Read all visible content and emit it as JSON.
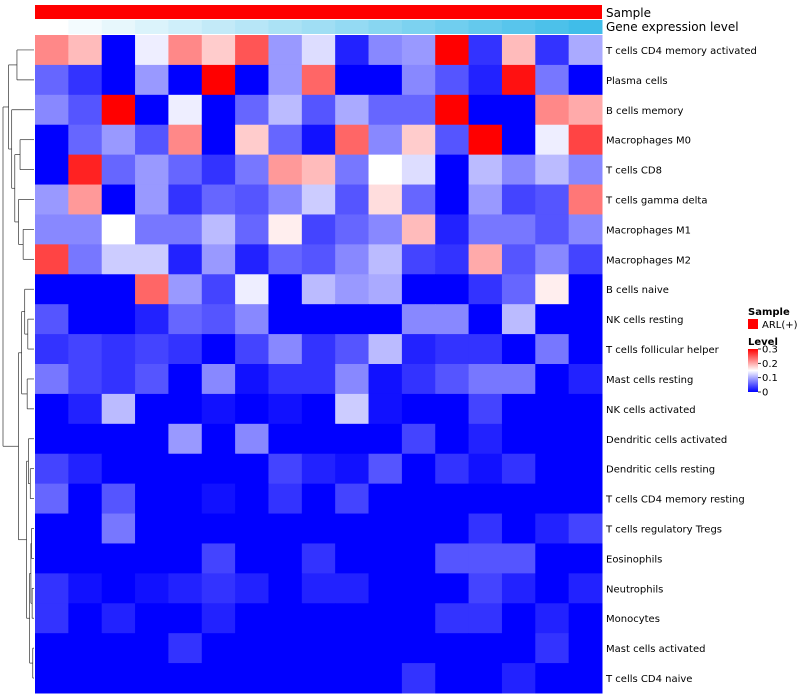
{
  "chart_data": {
    "type": "heatmap",
    "rows": [
      "T cells CD4 memory activated",
      "Plasma cells",
      "B cells memory",
      "Macrophages M0",
      "T cells CD8",
      "T cells gamma delta",
      "Macrophages M1",
      "Macrophages M2",
      "B cells naive",
      "NK cells resting",
      "T cells follicular helper",
      "Mast cells resting",
      "NK cells activated",
      "Dendritic cells activated",
      "Dendritic cells resting",
      "T cells CD4 memory resting",
      "T cells regulatory  Tregs",
      "Eosinophils",
      "Neutrophils",
      "Monocytes",
      "Mast cells activated",
      "T cells CD4 naive"
    ],
    "values": [
      [
        0.22,
        0.19,
        0.0,
        0.14,
        0.22,
        0.18,
        0.25,
        0.09,
        0.13,
        0.02,
        0.08,
        0.09,
        0.3,
        0.03,
        0.19,
        0.03,
        0.1
      ],
      [
        0.06,
        0.03,
        0.0,
        0.09,
        0.0,
        0.3,
        0.0,
        0.09,
        0.24,
        0.0,
        0.0,
        0.08,
        0.05,
        0.02,
        0.29,
        0.07,
        0.0
      ],
      [
        0.08,
        0.05,
        0.3,
        0.0,
        0.14,
        0.0,
        0.06,
        0.11,
        0.05,
        0.1,
        0.06,
        0.06,
        0.3,
        0.0,
        0.0,
        0.22,
        0.2
      ],
      [
        0.0,
        0.06,
        0.09,
        0.05,
        0.22,
        0.0,
        0.18,
        0.06,
        0.01,
        0.24,
        0.08,
        0.18,
        0.05,
        0.3,
        0.0,
        0.14,
        0.26
      ],
      [
        0.0,
        0.28,
        0.06,
        0.09,
        0.06,
        0.03,
        0.07,
        0.21,
        0.19,
        0.07,
        0.15,
        0.13,
        0.0,
        0.11,
        0.08,
        0.11,
        0.08
      ],
      [
        0.09,
        0.21,
        0.0,
        0.09,
        0.03,
        0.06,
        0.05,
        0.08,
        0.12,
        0.05,
        0.17,
        0.06,
        0.0,
        0.09,
        0.04,
        0.05,
        0.23
      ],
      [
        0.08,
        0.08,
        0.15,
        0.07,
        0.07,
        0.11,
        0.06,
        0.16,
        0.04,
        0.06,
        0.08,
        0.19,
        0.02,
        0.07,
        0.07,
        0.05,
        0.08
      ],
      [
        0.26,
        0.07,
        0.12,
        0.12,
        0.02,
        0.09,
        0.02,
        0.06,
        0.05,
        0.08,
        0.11,
        0.04,
        0.03,
        0.2,
        0.05,
        0.08,
        0.04
      ],
      [
        0.0,
        0.0,
        0.0,
        0.24,
        0.09,
        0.04,
        0.14,
        0.0,
        0.11,
        0.09,
        0.1,
        0.0,
        0.0,
        0.03,
        0.06,
        0.16,
        0.0
      ],
      [
        0.05,
        0.0,
        0.0,
        0.02,
        0.06,
        0.05,
        0.08,
        0.0,
        0.0,
        0.0,
        0.0,
        0.08,
        0.08,
        0.0,
        0.11,
        0.0,
        0.0
      ],
      [
        0.03,
        0.04,
        0.03,
        0.04,
        0.03,
        0.0,
        0.04,
        0.08,
        0.03,
        0.05,
        0.11,
        0.02,
        0.03,
        0.03,
        0.0,
        0.07,
        0.0
      ],
      [
        0.07,
        0.04,
        0.03,
        0.05,
        0.0,
        0.08,
        0.01,
        0.03,
        0.03,
        0.08,
        0.01,
        0.03,
        0.05,
        0.07,
        0.07,
        0.0,
        0.02
      ],
      [
        0.0,
        0.02,
        0.11,
        0.0,
        0.0,
        0.01,
        0.0,
        0.01,
        0.0,
        0.12,
        0.01,
        0.0,
        0.0,
        0.04,
        0.0,
        0.0,
        0.0
      ],
      [
        0.0,
        0.0,
        0.0,
        0.0,
        0.09,
        0.0,
        0.08,
        0.0,
        0.0,
        0.0,
        0.0,
        0.04,
        0.0,
        0.02,
        0.0,
        0.0,
        0.0
      ],
      [
        0.04,
        0.02,
        0.0,
        0.0,
        0.0,
        0.0,
        0.0,
        0.04,
        0.02,
        0.01,
        0.05,
        0.0,
        0.03,
        0.01,
        0.03,
        0.0,
        0.0
      ],
      [
        0.06,
        0.0,
        0.05,
        0.0,
        0.0,
        0.01,
        0.0,
        0.03,
        0.0,
        0.04,
        0.0,
        0.0,
        0.0,
        0.0,
        0.0,
        0.0,
        0.0
      ],
      [
        0.0,
        0.0,
        0.07,
        0.0,
        0.0,
        0.0,
        0.0,
        0.0,
        0.0,
        0.0,
        0.0,
        0.0,
        0.0,
        0.03,
        0.0,
        0.02,
        0.04
      ],
      [
        0.0,
        0.0,
        0.0,
        0.0,
        0.0,
        0.04,
        0.0,
        0.0,
        0.03,
        0.0,
        0.0,
        0.0,
        0.05,
        0.05,
        0.05,
        0.0,
        0.0
      ],
      [
        0.03,
        0.01,
        0.0,
        0.01,
        0.02,
        0.03,
        0.02,
        0.0,
        0.02,
        0.02,
        0.0,
        0.0,
        0.0,
        0.04,
        0.02,
        0.0,
        0.02
      ],
      [
        0.03,
        0.0,
        0.02,
        0.0,
        0.0,
        0.02,
        0.0,
        0.0,
        0.0,
        0.0,
        0.0,
        0.0,
        0.03,
        0.03,
        0.0,
        0.02,
        0.0
      ],
      [
        0.0,
        0.0,
        0.0,
        0.0,
        0.03,
        0.0,
        0.0,
        0.0,
        0.0,
        0.0,
        0.0,
        0.0,
        0.0,
        0.0,
        0.0,
        0.03,
        0.0
      ],
      [
        0.0,
        0.0,
        0.0,
        0.0,
        0.0,
        0.0,
        0.0,
        0.0,
        0.0,
        0.0,
        0.0,
        0.03,
        0.0,
        0.0,
        0.02,
        0.0,
        0.0
      ]
    ],
    "annotation_tracks": [
      "Sample",
      "Gene expression level"
    ],
    "legend": {
      "sample_title": "Sample",
      "sample_entry": "ARL(+)",
      "level_title": "Level",
      "level_ticks": [
        "0.3",
        "0.2",
        "0.1",
        "0"
      ],
      "level_tick_values": [
        0.3,
        0.2,
        0.1,
        0
      ],
      "range": [
        0,
        0.3
      ]
    },
    "colors": {
      "low": "#0000ff",
      "mid": "#ffffff",
      "high": "#ff0000",
      "sample": "#ff0000"
    }
  }
}
